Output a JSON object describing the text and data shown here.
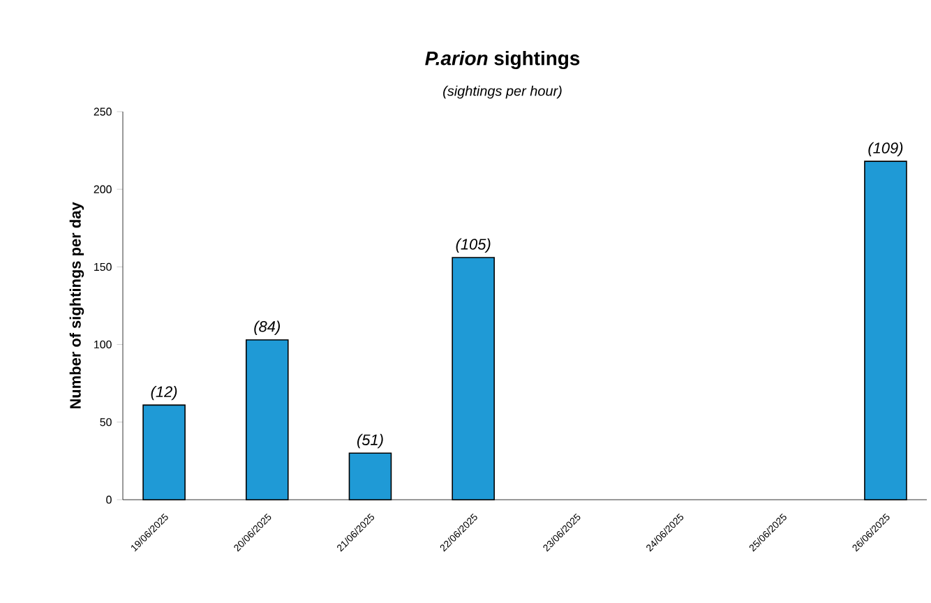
{
  "chart_data": {
    "type": "bar",
    "title": "*P.arion* sightings",
    "subtitle": "(sightings per hour)",
    "ylabel": "Number of sightings per day",
    "categories": [
      "19/06/2025",
      "20/06/2025",
      "21/06/2025",
      "22/06/2025",
      "23/06/2025",
      "24/06/2025",
      "25/06/2025",
      "26/06/2025"
    ],
    "values": [
      61,
      103,
      30,
      156,
      null,
      null,
      null,
      218
    ],
    "annotations": [
      {
        "text": "(12)",
        "x": "19/06/2025",
        "y": 61
      },
      {
        "text": "(84)",
        "x": "20/06/2025",
        "y": 103
      },
      {
        "text": "(51)",
        "x": "21/06/2025",
        "y": 30
      },
      {
        "text": "(105)",
        "x": "22/06/2025",
        "y": 156
      },
      {
        "text": "(109)",
        "x": "26/06/2025",
        "y": 218
      }
    ],
    "color": "#1f9ad6",
    "ylim": [
      0,
      250
    ],
    "yticks": [
      0,
      50,
      100,
      150,
      200,
      250
    ],
    "grid": false
  }
}
